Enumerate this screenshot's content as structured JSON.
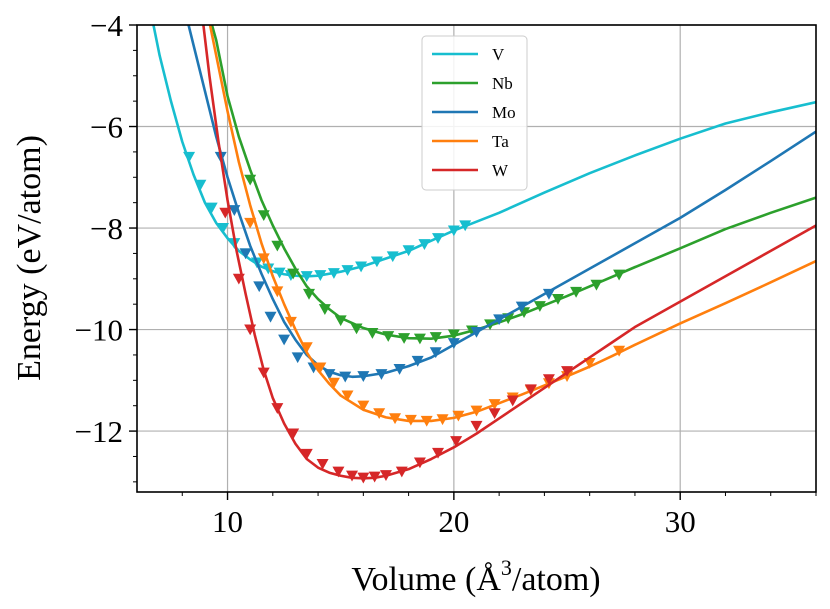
{
  "chart_data": {
    "type": "line",
    "title": "",
    "xlabel": "Volume (Å³/atom)",
    "xlabel_main": "Volume (Å",
    "xlabel_sup": "3",
    "xlabel_tail": "/atom)",
    "ylabel": "Energy (eV/atom)",
    "xlim": [
      6,
      36
    ],
    "ylim": [
      -13.2,
      -4
    ],
    "xticks": [
      10,
      20,
      30
    ],
    "xtick_labels": [
      "10",
      "20",
      "30"
    ],
    "yticks": [
      -12,
      -10,
      -8,
      -6,
      -4
    ],
    "ytick_labels": [
      "−12",
      "−10",
      "−8",
      "−6",
      "−4"
    ],
    "grid": true,
    "legend_position": "top-center",
    "series": [
      {
        "name": "V",
        "color": "#17becf",
        "curve": [
          [
            6.5,
            -3.5
          ],
          [
            7.0,
            -4.6
          ],
          [
            7.5,
            -5.5
          ],
          [
            8.0,
            -6.3
          ],
          [
            8.5,
            -6.95
          ],
          [
            9.0,
            -7.5
          ],
          [
            9.5,
            -7.9
          ],
          [
            10.0,
            -8.2
          ],
          [
            10.5,
            -8.45
          ],
          [
            11.0,
            -8.62
          ],
          [
            11.5,
            -8.76
          ],
          [
            12.0,
            -8.85
          ],
          [
            12.5,
            -8.91
          ],
          [
            13.0,
            -8.94
          ],
          [
            13.5,
            -8.95
          ],
          [
            14.0,
            -8.94
          ],
          [
            15.0,
            -8.86
          ],
          [
            16.0,
            -8.75
          ],
          [
            17.0,
            -8.6
          ],
          [
            18.0,
            -8.45
          ],
          [
            19.0,
            -8.25
          ],
          [
            20.0,
            -8.05
          ],
          [
            22.0,
            -7.7
          ],
          [
            24.0,
            -7.3
          ],
          [
            26.0,
            -6.92
          ],
          [
            28.0,
            -6.57
          ],
          [
            30.0,
            -6.24
          ],
          [
            32.0,
            -5.94
          ],
          [
            34.0,
            -5.72
          ],
          [
            36.0,
            -5.52
          ]
        ],
        "markers": [
          [
            8.3,
            -6.6
          ],
          [
            8.8,
            -7.15
          ],
          [
            9.3,
            -7.6
          ],
          [
            9.8,
            -8.0
          ],
          [
            10.3,
            -8.3
          ],
          [
            10.8,
            -8.5
          ],
          [
            11.3,
            -8.68
          ],
          [
            11.8,
            -8.8
          ],
          [
            12.3,
            -8.88
          ],
          [
            12.8,
            -8.93
          ],
          [
            13.5,
            -8.95
          ],
          [
            14.1,
            -8.93
          ],
          [
            14.7,
            -8.89
          ],
          [
            15.3,
            -8.83
          ],
          [
            15.9,
            -8.76
          ],
          [
            16.6,
            -8.66
          ],
          [
            17.3,
            -8.56
          ],
          [
            18.0,
            -8.44
          ],
          [
            18.7,
            -8.32
          ],
          [
            19.3,
            -8.2
          ],
          [
            20.0,
            -8.05
          ],
          [
            20.5,
            -7.95
          ]
        ]
      },
      {
        "name": "Nb",
        "color": "#2ca02c",
        "curve": [
          [
            9.0,
            -3.5
          ],
          [
            9.5,
            -4.3
          ],
          [
            10.0,
            -5.4
          ],
          [
            10.5,
            -6.2
          ],
          [
            11.0,
            -6.85
          ],
          [
            11.5,
            -7.45
          ],
          [
            12.0,
            -7.95
          ],
          [
            12.5,
            -8.4
          ],
          [
            13.0,
            -8.8
          ],
          [
            13.5,
            -9.15
          ],
          [
            14.0,
            -9.4
          ],
          [
            14.5,
            -9.6
          ],
          [
            15.0,
            -9.77
          ],
          [
            16.0,
            -9.97
          ],
          [
            17.0,
            -10.1
          ],
          [
            18.0,
            -10.17
          ],
          [
            19.0,
            -10.18
          ],
          [
            20.0,
            -10.12
          ],
          [
            21.0,
            -10.0
          ],
          [
            22.0,
            -9.86
          ],
          [
            23.0,
            -9.7
          ],
          [
            24.0,
            -9.52
          ],
          [
            25.0,
            -9.34
          ],
          [
            26.0,
            -9.15
          ],
          [
            28.0,
            -8.77
          ],
          [
            30.0,
            -8.4
          ],
          [
            32.0,
            -8.02
          ],
          [
            34.0,
            -7.7
          ],
          [
            36.0,
            -7.4
          ]
        ],
        "markers": [
          [
            11.0,
            -7.05
          ],
          [
            11.6,
            -7.75
          ],
          [
            12.2,
            -8.35
          ],
          [
            12.9,
            -8.9
          ],
          [
            13.6,
            -9.3
          ],
          [
            14.3,
            -9.6
          ],
          [
            15.0,
            -9.82
          ],
          [
            15.7,
            -9.98
          ],
          [
            16.4,
            -10.07
          ],
          [
            17.1,
            -10.13
          ],
          [
            17.8,
            -10.17
          ],
          [
            18.5,
            -10.18
          ],
          [
            19.2,
            -10.15
          ],
          [
            20.0,
            -10.1
          ],
          [
            20.8,
            -10.02
          ],
          [
            21.6,
            -9.9
          ],
          [
            22.4,
            -9.78
          ],
          [
            23.1,
            -9.66
          ],
          [
            23.8,
            -9.54
          ],
          [
            24.6,
            -9.4
          ],
          [
            25.4,
            -9.26
          ],
          [
            26.3,
            -9.12
          ],
          [
            27.3,
            -8.92
          ]
        ]
      },
      {
        "name": "Mo",
        "color": "#1f77b4",
        "curve": [
          [
            8.0,
            -3.5
          ],
          [
            8.5,
            -4.4
          ],
          [
            9.0,
            -5.3
          ],
          [
            9.5,
            -6.2
          ],
          [
            10.0,
            -7.0
          ],
          [
            10.5,
            -7.7
          ],
          [
            11.0,
            -8.35
          ],
          [
            11.5,
            -8.9
          ],
          [
            12.0,
            -9.4
          ],
          [
            12.5,
            -9.85
          ],
          [
            13.0,
            -10.2
          ],
          [
            13.5,
            -10.5
          ],
          [
            14.0,
            -10.7
          ],
          [
            14.5,
            -10.83
          ],
          [
            15.0,
            -10.9
          ],
          [
            15.5,
            -10.93
          ],
          [
            16.0,
            -10.92
          ],
          [
            17.0,
            -10.85
          ],
          [
            18.0,
            -10.72
          ],
          [
            19.0,
            -10.55
          ],
          [
            20.0,
            -10.3
          ],
          [
            21.0,
            -10.05
          ],
          [
            22.0,
            -9.8
          ],
          [
            23.0,
            -9.55
          ],
          [
            24.0,
            -9.3
          ],
          [
            26.0,
            -8.8
          ],
          [
            28.0,
            -8.3
          ],
          [
            30.0,
            -7.8
          ],
          [
            32.0,
            -7.25
          ],
          [
            34.0,
            -6.68
          ],
          [
            36.0,
            -6.1
          ]
        ],
        "markers": [
          [
            9.7,
            -6.6
          ],
          [
            10.3,
            -7.65
          ],
          [
            10.8,
            -8.5
          ],
          [
            11.4,
            -9.15
          ],
          [
            11.9,
            -9.75
          ],
          [
            12.5,
            -10.2
          ],
          [
            13.1,
            -10.55
          ],
          [
            13.8,
            -10.75
          ],
          [
            14.5,
            -10.88
          ],
          [
            15.2,
            -10.93
          ],
          [
            16.0,
            -10.92
          ],
          [
            16.8,
            -10.88
          ],
          [
            17.6,
            -10.78
          ],
          [
            18.4,
            -10.62
          ],
          [
            19.2,
            -10.45
          ],
          [
            20.0,
            -10.27
          ],
          [
            21.0,
            -10.05
          ],
          [
            22.0,
            -9.8
          ],
          [
            23.0,
            -9.55
          ],
          [
            24.2,
            -9.3
          ]
        ]
      },
      {
        "name": "Ta",
        "color": "#ff7f0e",
        "curve": [
          [
            9.0,
            -3.5
          ],
          [
            9.5,
            -4.6
          ],
          [
            10.0,
            -5.7
          ],
          [
            10.5,
            -6.7
          ],
          [
            11.0,
            -7.55
          ],
          [
            11.5,
            -8.3
          ],
          [
            12.0,
            -8.95
          ],
          [
            12.5,
            -9.5
          ],
          [
            13.0,
            -10.0
          ],
          [
            13.5,
            -10.45
          ],
          [
            14.0,
            -10.8
          ],
          [
            14.5,
            -11.07
          ],
          [
            15.0,
            -11.3
          ],
          [
            16.0,
            -11.58
          ],
          [
            17.0,
            -11.73
          ],
          [
            18.0,
            -11.8
          ],
          [
            19.0,
            -11.8
          ],
          [
            20.0,
            -11.74
          ],
          [
            21.0,
            -11.62
          ],
          [
            22.0,
            -11.45
          ],
          [
            23.0,
            -11.28
          ],
          [
            24.0,
            -11.1
          ],
          [
            25.0,
            -10.92
          ],
          [
            26.0,
            -10.73
          ],
          [
            27.0,
            -10.52
          ],
          [
            28.0,
            -10.3
          ],
          [
            30.0,
            -9.88
          ],
          [
            32.0,
            -9.48
          ],
          [
            34.0,
            -9.07
          ],
          [
            36.0,
            -8.65
          ]
        ],
        "markers": [
          [
            11.0,
            -7.9
          ],
          [
            11.6,
            -8.6
          ],
          [
            12.2,
            -9.25
          ],
          [
            12.8,
            -9.85
          ],
          [
            13.5,
            -10.35
          ],
          [
            14.1,
            -10.75
          ],
          [
            14.7,
            -11.05
          ],
          [
            15.3,
            -11.3
          ],
          [
            16.0,
            -11.5
          ],
          [
            16.7,
            -11.65
          ],
          [
            17.4,
            -11.75
          ],
          [
            18.1,
            -11.78
          ],
          [
            18.8,
            -11.8
          ],
          [
            19.5,
            -11.77
          ],
          [
            20.2,
            -11.7
          ],
          [
            21.0,
            -11.6
          ],
          [
            21.8,
            -11.47
          ],
          [
            22.6,
            -11.34
          ],
          [
            23.4,
            -11.2
          ],
          [
            24.2,
            -11.06
          ],
          [
            25.0,
            -10.92
          ],
          [
            26.0,
            -10.66
          ],
          [
            27.3,
            -10.42
          ]
        ]
      },
      {
        "name": "W",
        "color": "#d62728",
        "curve": [
          [
            8.8,
            -3.5
          ],
          [
            9.2,
            -5.0
          ],
          [
            9.6,
            -6.3
          ],
          [
            10.0,
            -7.45
          ],
          [
            10.4,
            -8.45
          ],
          [
            10.8,
            -9.3
          ],
          [
            11.2,
            -10.1
          ],
          [
            11.6,
            -10.8
          ],
          [
            12.0,
            -11.35
          ],
          [
            12.5,
            -11.85
          ],
          [
            13.0,
            -12.25
          ],
          [
            13.5,
            -12.55
          ],
          [
            14.0,
            -12.72
          ],
          [
            14.5,
            -12.82
          ],
          [
            15.0,
            -12.88
          ],
          [
            15.5,
            -12.92
          ],
          [
            16.0,
            -12.93
          ],
          [
            16.5,
            -12.92
          ],
          [
            17.0,
            -12.88
          ],
          [
            18.0,
            -12.75
          ],
          [
            19.0,
            -12.55
          ],
          [
            20.0,
            -12.32
          ],
          [
            21.0,
            -12.05
          ],
          [
            22.0,
            -11.75
          ],
          [
            23.0,
            -11.45
          ],
          [
            24.0,
            -11.15
          ],
          [
            25.0,
            -10.85
          ],
          [
            26.0,
            -10.55
          ],
          [
            27.0,
            -10.25
          ],
          [
            28.0,
            -9.95
          ],
          [
            30.0,
            -9.45
          ],
          [
            32.0,
            -8.95
          ],
          [
            34.0,
            -8.45
          ],
          [
            36.0,
            -7.95
          ]
        ],
        "markers": [
          [
            9.9,
            -7.7
          ],
          [
            10.5,
            -9.0
          ],
          [
            11.0,
            -10.0
          ],
          [
            11.6,
            -10.85
          ],
          [
            12.2,
            -11.55
          ],
          [
            12.9,
            -12.05
          ],
          [
            13.5,
            -12.45
          ],
          [
            14.2,
            -12.65
          ],
          [
            14.9,
            -12.8
          ],
          [
            15.5,
            -12.88
          ],
          [
            16.0,
            -12.92
          ],
          [
            16.5,
            -12.9
          ],
          [
            17.0,
            -12.87
          ],
          [
            17.7,
            -12.8
          ],
          [
            18.5,
            -12.62
          ],
          [
            19.3,
            -12.43
          ],
          [
            20.1,
            -12.2
          ],
          [
            21.0,
            -11.9
          ],
          [
            21.8,
            -11.65
          ],
          [
            22.6,
            -11.4
          ],
          [
            23.4,
            -11.18
          ],
          [
            24.2,
            -10.98
          ],
          [
            25.0,
            -10.82
          ]
        ]
      }
    ]
  }
}
